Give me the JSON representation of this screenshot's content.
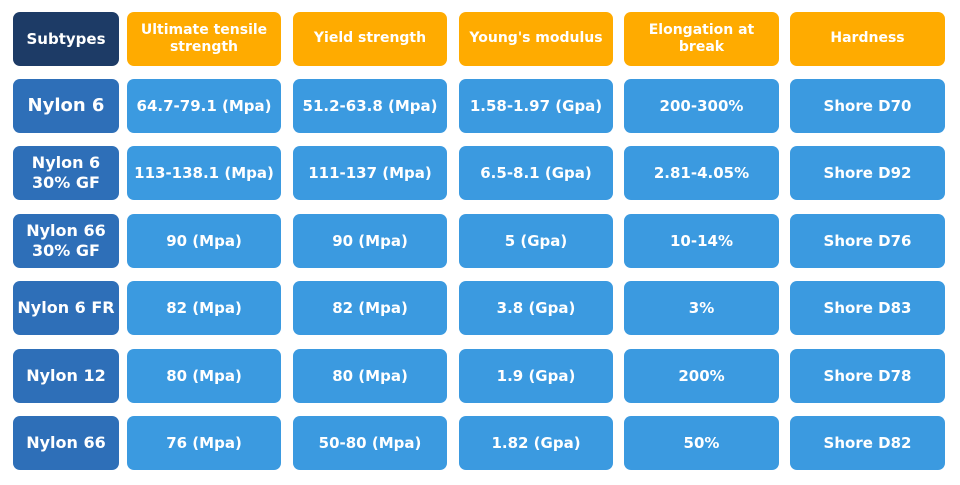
{
  "table": {
    "corner_label": "Subtypes",
    "columns": [
      "Ultimate tensile strength",
      "Yield strength",
      "Young's modulus",
      "Elongation at break",
      "Hardness"
    ],
    "rows": [
      {
        "label": "Nylon 6",
        "values": [
          "64.7-79.1 (Mpa)",
          "51.2-63.8 (Mpa)",
          "1.58-1.97 (Gpa)",
          "200-300%",
          "Shore D70"
        ]
      },
      {
        "label": "Nylon 6\n30% GF",
        "values": [
          "113-138.1 (Mpa)",
          "111-137 (Mpa)",
          "6.5-8.1 (Gpa)",
          "2.81-4.05%",
          "Shore D92"
        ]
      },
      {
        "label": "Nylon 66\n30% GF",
        "values": [
          "90 (Mpa)",
          "90 (Mpa)",
          "5 (Gpa)",
          "10-14%",
          "Shore D76"
        ]
      },
      {
        "label": "Nylon 6 FR",
        "values": [
          "82 (Mpa)",
          "82 (Mpa)",
          "3.8 (Gpa)",
          "3%",
          "Shore D83"
        ]
      },
      {
        "label": "Nylon 12",
        "values": [
          "80 (Mpa)",
          "80 (Mpa)",
          "1.9 (Gpa)",
          "200%",
          "Shore D78"
        ]
      },
      {
        "label": "Nylon 66",
        "values": [
          "76 (Mpa)",
          "50-80 (Mpa)",
          "1.82 (Gpa)",
          "50%",
          "Shore D82"
        ]
      }
    ]
  },
  "colors": {
    "corner": "#1d3b66",
    "header": "#ffab00",
    "row_header": "#2e6fb8",
    "value_cell": "#3b9ae0",
    "text": "#ffffff"
  }
}
